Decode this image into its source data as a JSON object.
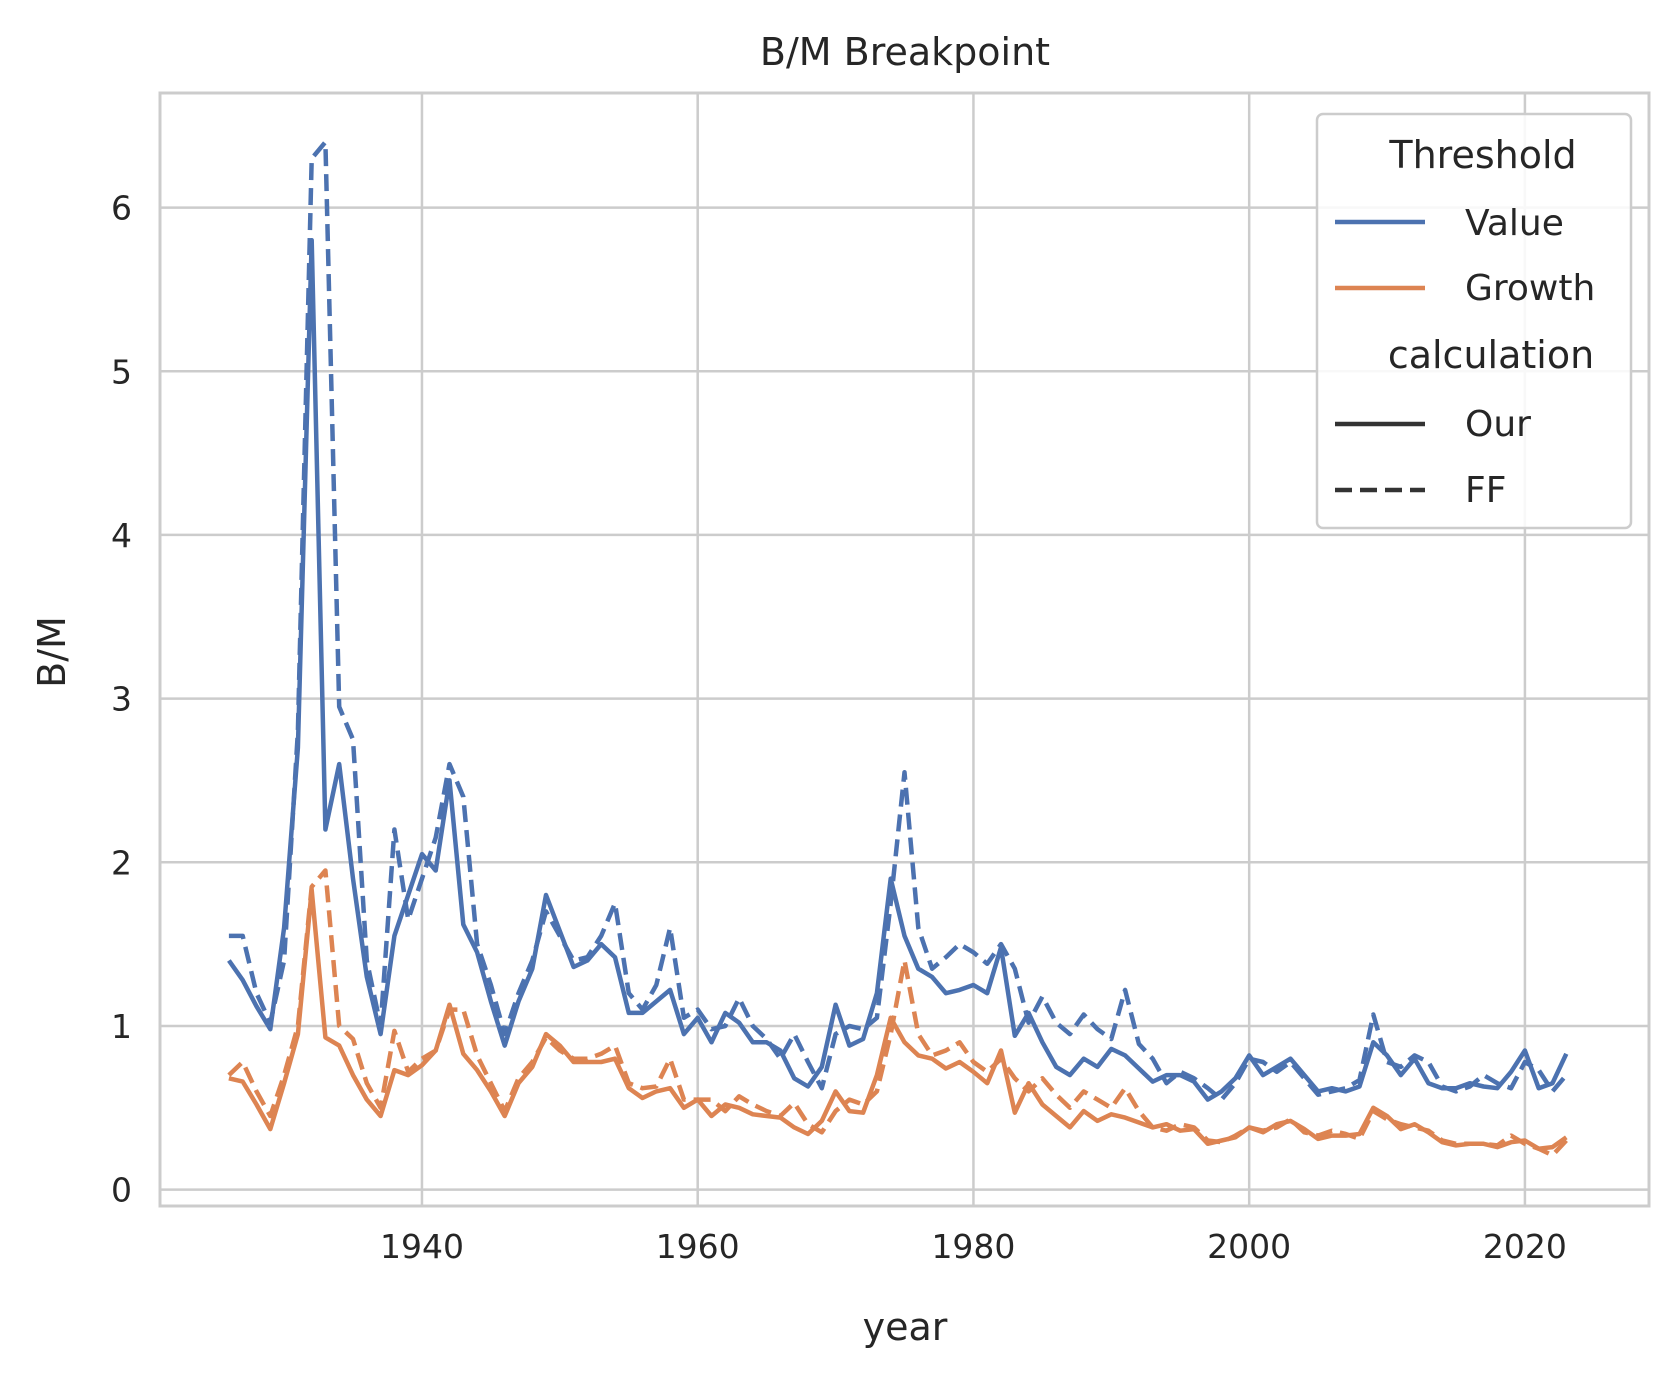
{
  "chart_data": {
    "type": "line",
    "title": "B/M Breakpoint",
    "xlabel": "year",
    "ylabel": "B/M",
    "xlim": [
      1921,
      2029
    ],
    "ylim": [
      -0.1,
      6.7
    ],
    "x_ticks": [
      1940,
      1960,
      1980,
      2000,
      2020
    ],
    "y_ticks": [
      0,
      1,
      2,
      3,
      4,
      5,
      6
    ],
    "grid": true,
    "legend_placement": "top-right",
    "legend": {
      "hue_title": "Threshold",
      "hue_entries": [
        {
          "label": "Value",
          "color": "#4c72b0"
        },
        {
          "label": "Growth",
          "color": "#dd8452"
        }
      ],
      "style_title": "calculation",
      "style_entries": [
        {
          "label": "Our",
          "dash": "solid"
        },
        {
          "label": "FF",
          "dash": "dashed"
        }
      ]
    },
    "x": [
      1926,
      1927,
      1928,
      1929,
      1930,
      1931,
      1932,
      1933,
      1934,
      1935,
      1936,
      1937,
      1938,
      1939,
      1940,
      1941,
      1942,
      1943,
      1944,
      1945,
      1946,
      1947,
      1948,
      1949,
      1950,
      1951,
      1952,
      1953,
      1954,
      1955,
      1956,
      1957,
      1958,
      1959,
      1960,
      1961,
      1962,
      1963,
      1964,
      1965,
      1966,
      1967,
      1968,
      1969,
      1970,
      1971,
      1972,
      1973,
      1974,
      1975,
      1976,
      1977,
      1978,
      1979,
      1980,
      1981,
      1982,
      1983,
      1984,
      1985,
      1986,
      1987,
      1988,
      1989,
      1990,
      1991,
      1992,
      1993,
      1994,
      1995,
      1996,
      1997,
      1998,
      1999,
      2000,
      2001,
      2002,
      2003,
      2004,
      2005,
      2006,
      2007,
      2008,
      2009,
      2010,
      2011,
      2012,
      2013,
      2014,
      2015,
      2016,
      2017,
      2018,
      2019,
      2020,
      2021,
      2022,
      2023
    ],
    "series": [
      {
        "name": "Value",
        "calculation": "Our",
        "color": "#4c72b0",
        "dash": "solid",
        "values": [
          1.4,
          1.28,
          1.12,
          0.98,
          1.6,
          2.7,
          5.8,
          2.2,
          2.6,
          1.9,
          1.3,
          0.95,
          1.55,
          1.8,
          2.05,
          1.95,
          2.5,
          1.62,
          1.45,
          1.15,
          0.88,
          1.15,
          1.35,
          1.8,
          1.58,
          1.36,
          1.4,
          1.5,
          1.42,
          1.08,
          1.08,
          1.15,
          1.22,
          0.95,
          1.05,
          0.9,
          1.08,
          1.02,
          0.9,
          0.9,
          0.85,
          0.68,
          0.63,
          0.75,
          1.13,
          0.88,
          0.92,
          1.2,
          1.9,
          1.55,
          1.35,
          1.3,
          1.2,
          1.22,
          1.25,
          1.2,
          1.48,
          0.94,
          1.08,
          0.9,
          0.75,
          0.7,
          0.8,
          0.75,
          0.86,
          0.82,
          0.74,
          0.66,
          0.7,
          0.7,
          0.66,
          0.55,
          0.6,
          0.68,
          0.82,
          0.7,
          0.75,
          0.8,
          0.7,
          0.6,
          0.62,
          0.6,
          0.63,
          0.9,
          0.82,
          0.7,
          0.8,
          0.65,
          0.62,
          0.62,
          0.65,
          0.63,
          0.62,
          0.72,
          0.85,
          0.62,
          0.65,
          0.83
        ]
      },
      {
        "name": "Value",
        "calculation": "FF",
        "color": "#4c72b0",
        "dash": "dashed",
        "values": [
          1.55,
          1.55,
          1.2,
          1.02,
          1.4,
          2.8,
          6.3,
          6.4,
          2.95,
          2.75,
          1.4,
          1.0,
          2.2,
          1.65,
          1.9,
          2.15,
          2.6,
          2.4,
          1.5,
          1.25,
          0.95,
          1.2,
          1.4,
          1.7,
          1.55,
          1.4,
          1.42,
          1.55,
          1.75,
          1.2,
          1.1,
          1.25,
          1.6,
          1.05,
          1.1,
          0.98,
          1.0,
          1.17,
          1.0,
          0.92,
          0.8,
          0.95,
          0.78,
          0.62,
          0.95,
          1.0,
          0.98,
          1.05,
          1.75,
          2.55,
          1.6,
          1.35,
          1.42,
          1.5,
          1.45,
          1.38,
          1.5,
          1.35,
          1.02,
          1.18,
          1.02,
          0.95,
          1.07,
          0.98,
          0.92,
          1.22,
          0.89,
          0.8,
          0.65,
          0.72,
          0.68,
          0.62,
          0.55,
          0.65,
          0.8,
          0.78,
          0.72,
          0.78,
          0.68,
          0.58,
          0.6,
          0.62,
          0.67,
          1.07,
          0.78,
          0.75,
          0.82,
          0.78,
          0.63,
          0.6,
          0.63,
          0.7,
          0.65,
          0.62,
          0.78,
          0.73,
          0.6,
          0.7
        ]
      },
      {
        "name": "Growth",
        "calculation": "Our",
        "color": "#dd8452",
        "dash": "solid",
        "values": [
          0.68,
          0.66,
          0.52,
          0.37,
          0.65,
          0.95,
          1.83,
          0.93,
          0.88,
          0.7,
          0.55,
          0.45,
          0.73,
          0.7,
          0.76,
          0.85,
          1.13,
          0.83,
          0.73,
          0.6,
          0.45,
          0.65,
          0.75,
          0.95,
          0.88,
          0.78,
          0.78,
          0.78,
          0.8,
          0.62,
          0.56,
          0.6,
          0.62,
          0.5,
          0.55,
          0.45,
          0.52,
          0.5,
          0.46,
          0.45,
          0.44,
          0.38,
          0.34,
          0.42,
          0.6,
          0.48,
          0.47,
          0.7,
          1.05,
          0.9,
          0.82,
          0.8,
          0.74,
          0.78,
          0.72,
          0.65,
          0.85,
          0.47,
          0.65,
          0.52,
          0.45,
          0.38,
          0.48,
          0.42,
          0.46,
          0.44,
          0.41,
          0.38,
          0.4,
          0.36,
          0.37,
          0.28,
          0.3,
          0.32,
          0.38,
          0.35,
          0.4,
          0.42,
          0.37,
          0.31,
          0.33,
          0.33,
          0.34,
          0.5,
          0.45,
          0.37,
          0.4,
          0.35,
          0.29,
          0.27,
          0.28,
          0.28,
          0.26,
          0.29,
          0.3,
          0.25,
          0.26,
          0.32
        ]
      },
      {
        "name": "Growth",
        "calculation": "FF",
        "color": "#dd8452",
        "dash": "dashed",
        "values": [
          0.7,
          0.78,
          0.6,
          0.45,
          0.7,
          1.0,
          1.85,
          1.95,
          1.0,
          0.92,
          0.65,
          0.5,
          0.97,
          0.72,
          0.8,
          0.85,
          1.1,
          1.1,
          0.82,
          0.65,
          0.48,
          0.68,
          0.78,
          0.93,
          0.85,
          0.8,
          0.8,
          0.83,
          0.88,
          0.65,
          0.62,
          0.63,
          0.8,
          0.55,
          0.55,
          0.55,
          0.48,
          0.57,
          0.52,
          0.48,
          0.45,
          0.53,
          0.4,
          0.35,
          0.48,
          0.55,
          0.52,
          0.6,
          0.95,
          1.4,
          0.95,
          0.82,
          0.85,
          0.9,
          0.78,
          0.72,
          0.8,
          0.68,
          0.6,
          0.68,
          0.58,
          0.5,
          0.6,
          0.55,
          0.5,
          0.62,
          0.48,
          0.38,
          0.36,
          0.4,
          0.38,
          0.3,
          0.29,
          0.33,
          0.38,
          0.36,
          0.38,
          0.43,
          0.35,
          0.33,
          0.36,
          0.34,
          0.31,
          0.48,
          0.43,
          0.4,
          0.38,
          0.36,
          0.3,
          0.28,
          0.28,
          0.28,
          0.27,
          0.33,
          0.28,
          0.25,
          0.21,
          0.3
        ]
      }
    ]
  }
}
